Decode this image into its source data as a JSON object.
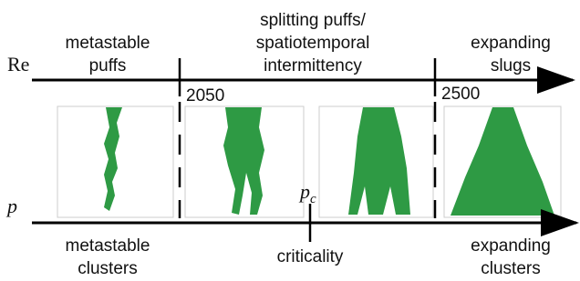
{
  "re_axis": {
    "symbol": "Re",
    "ticks": [
      "2050",
      "2500"
    ]
  },
  "p_axis": {
    "symbol": "p",
    "critical": {
      "symbol": "p",
      "subscript": "c"
    }
  },
  "top_labels": [
    {
      "lines": [
        "metastable",
        "puffs"
      ]
    },
    {
      "lines": [
        "splitting puffs/",
        "spatiotemporal",
        "intermittency"
      ]
    },
    {
      "lines": [
        "expanding",
        "slugs"
      ]
    }
  ],
  "bottom_labels": [
    {
      "lines": [
        "metastable",
        "clusters"
      ]
    },
    {
      "lines": [
        "criticality"
      ]
    },
    {
      "lines": [
        "expanding",
        "clusters"
      ]
    }
  ]
}
